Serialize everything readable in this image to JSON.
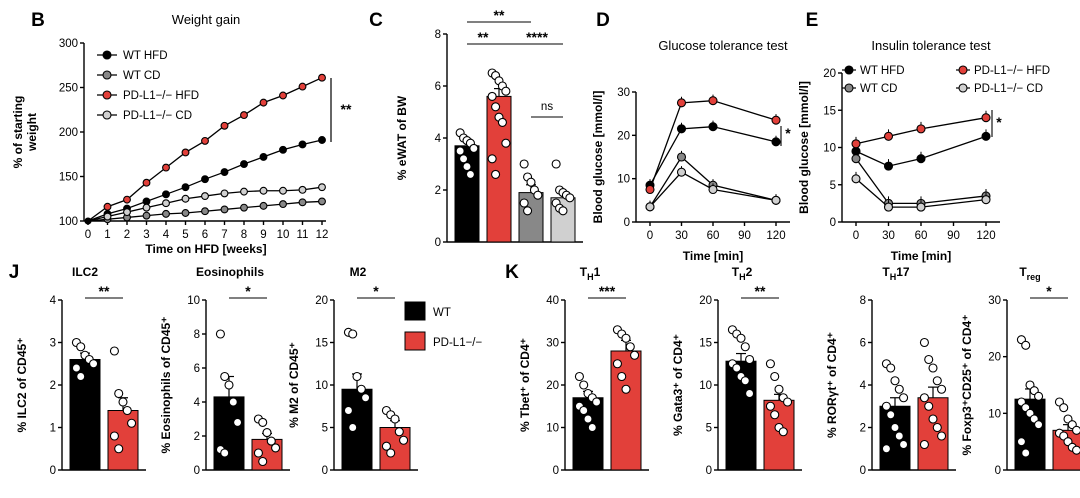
{
  "colors": {
    "wt": "#000000",
    "ko": "#e2403a",
    "wtcd": "#888888",
    "kocd": "#d0d0d0",
    "line": "#000000"
  },
  "legendJ": {
    "wt": "WT",
    "ko": "PD-L1−/−"
  },
  "chart_data": [
    {
      "id": "B",
      "panel": "B",
      "type": "line",
      "title": "Weight gain",
      "xlabel": "Time on HFD [weeks]",
      "ylabel1": "% of starting",
      "ylabel2": "weight",
      "ylim": [
        100,
        300
      ],
      "yticks": [
        100,
        150,
        200,
        250,
        300
      ],
      "xlim": [
        0,
        12
      ],
      "xticks": [
        0,
        1,
        2,
        3,
        4,
        5,
        6,
        7,
        8,
        9,
        10,
        11,
        12
      ],
      "x": [
        0,
        1,
        2,
        3,
        4,
        5,
        6,
        7,
        8,
        9,
        10,
        11,
        12
      ],
      "series": [
        {
          "name": "WT HFD",
          "color": "wt",
          "values": [
            100,
            108,
            114,
            122,
            130,
            138,
            147,
            155,
            164,
            172,
            180,
            186,
            191
          ]
        },
        {
          "name": "WT CD",
          "color": "wtcd",
          "values": [
            100,
            102,
            104,
            106,
            108,
            109,
            111,
            113,
            115,
            117,
            119,
            121,
            122
          ]
        },
        {
          "name": "PD-L1−/− HFD",
          "color": "ko",
          "values": [
            100,
            116,
            124,
            143,
            160,
            177,
            190,
            207,
            219,
            233,
            241,
            251,
            261
          ]
        },
        {
          "name": "PD-L1−/− CD",
          "color": "kocd",
          "values": [
            100,
            105,
            110,
            115,
            120,
            125,
            128,
            131,
            133,
            134,
            134,
            135,
            138
          ]
        }
      ],
      "sig": [
        {
          "text": "**"
        }
      ]
    },
    {
      "id": "C",
      "panel": "C",
      "type": "bar",
      "title": "",
      "ylabel": "% eWAT of BW",
      "ylim": [
        0,
        8
      ],
      "yticks": [
        0,
        2,
        4,
        6,
        8
      ],
      "categories": [
        "WT HFD",
        "PD-L1−/− HFD",
        "WT CD",
        "PD-L1−/− CD"
      ],
      "bar_colors": [
        "wt",
        "ko",
        "wtcd",
        "kocd"
      ],
      "values": [
        3.7,
        5.6,
        1.9,
        1.7
      ],
      "errors": [
        0.25,
        0.3,
        0.3,
        0.2
      ],
      "points": [
        [
          4.2,
          4.0,
          3.9,
          3.8,
          3.6,
          3.5,
          3.2,
          2.9,
          2.6
        ],
        [
          6.5,
          6.4,
          6.2,
          6.0,
          5.8,
          5.6,
          5.2,
          4.8,
          4.6,
          3.8,
          3.2,
          2.6
        ],
        [
          3.0,
          2.5,
          2.3,
          2.0,
          1.8,
          1.5,
          1.2
        ],
        [
          3.0,
          2.0,
          1.9,
          1.8,
          1.7,
          1.5,
          1.3,
          1.2
        ]
      ],
      "sig": [
        {
          "text": "**"
        },
        {
          "text": "**"
        },
        {
          "text": "****"
        },
        {
          "text": "ns"
        }
      ]
    },
    {
      "id": "D",
      "panel": "D",
      "type": "line",
      "title": "Glucose tolerance test",
      "xlabel": "Time [min]",
      "ylabel": "Blood glucose [mmol/l]",
      "ylim": [
        0,
        30
      ],
      "yticks": [
        0,
        10,
        20,
        30
      ],
      "xticks": [
        0,
        30,
        60,
        90,
        120
      ],
      "x": [
        0,
        30,
        60,
        120
      ],
      "series": [
        {
          "name": "WT HFD",
          "color": "wt",
          "values": [
            8.5,
            21.5,
            22,
            18.5
          ]
        },
        {
          "name": "PD-L1−/− HFD",
          "color": "ko",
          "values": [
            7.5,
            27.5,
            28,
            23.5
          ]
        },
        {
          "name": "WT CD",
          "color": "wtcd",
          "values": [
            3.5,
            15,
            8.5,
            5
          ]
        },
        {
          "name": "PD-L1−/− CD",
          "color": "kocd",
          "values": [
            3.5,
            11.5,
            7.5,
            5
          ]
        }
      ],
      "sig": [
        {
          "text": "*"
        }
      ]
    },
    {
      "id": "E",
      "panel": "E",
      "type": "line",
      "title": "Insulin tolerance test",
      "xlabel": "Time [min]",
      "ylabel": "Blood glucose [mmol/l]",
      "ylim": [
        0,
        20
      ],
      "yticks": [
        0,
        5,
        10,
        15,
        20
      ],
      "xticks": [
        0,
        30,
        60,
        90,
        120
      ],
      "x": [
        0,
        30,
        60,
        120
      ],
      "series": [
        {
          "name": "WT HFD",
          "color": "wt",
          "values": [
            9.5,
            7.5,
            8.5,
            11.5
          ]
        },
        {
          "name": "PD-L1−/− HFD",
          "color": "ko",
          "values": [
            10.5,
            11.5,
            12.5,
            14
          ]
        },
        {
          "name": "WT CD",
          "color": "wtcd",
          "values": [
            8.5,
            2.5,
            2.5,
            3.5
          ]
        },
        {
          "name": "PD-L1−/− CD",
          "color": "kocd",
          "values": [
            5.8,
            2,
            2,
            3
          ]
        }
      ],
      "sig": [
        {
          "text": "*"
        }
      ]
    },
    {
      "id": "J1",
      "panel": "J",
      "type": "bar",
      "title": "ILC2",
      "ylabel": "% ILC2 of CD45⁺",
      "ylim": [
        0,
        4
      ],
      "yticks": [
        0,
        1,
        2,
        3,
        4
      ],
      "categories": [
        "WT",
        "PD-L1−/−"
      ],
      "bar_colors": [
        "wt",
        "ko"
      ],
      "values": [
        2.6,
        1.4
      ],
      "errors": [
        0.15,
        0.3
      ],
      "points": [
        [
          3.0,
          2.9,
          2.7,
          2.6,
          2.5,
          2.4,
          2.2
        ],
        [
          2.8,
          1.8,
          1.6,
          1.4,
          1.1,
          0.8,
          0.5
        ]
      ],
      "sig": [
        {
          "text": "**"
        }
      ]
    },
    {
      "id": "J2",
      "panel": "",
      "type": "bar",
      "title": "Eosinophils",
      "ylabel": "% Eosinophils of CD45⁺",
      "ylim": [
        0,
        10
      ],
      "yticks": [
        0,
        2,
        4,
        6,
        8,
        10
      ],
      "categories": [
        "WT",
        "PD-L1−/−"
      ],
      "bar_colors": [
        "wt",
        "ko"
      ],
      "values": [
        4.3,
        1.8
      ],
      "errors": [
        1.2,
        0.35
      ],
      "points": [
        [
          8.0,
          5.5,
          5.0,
          4.0,
          2.8,
          1.2,
          1.0
        ],
        [
          3.0,
          2.8,
          2.2,
          1.7,
          1.3,
          1.0,
          0.5
        ]
      ],
      "sig": [
        {
          "text": "*"
        }
      ]
    },
    {
      "id": "J3",
      "panel": "",
      "type": "bar",
      "title": "M2",
      "ylabel": "% M2 of CD45⁺",
      "ylim": [
        0,
        20
      ],
      "yticks": [
        0,
        5,
        10,
        15,
        20
      ],
      "categories": [
        "WT",
        "PD-L1−/−"
      ],
      "bar_colors": [
        "wt",
        "ko"
      ],
      "values": [
        9.5,
        5.0
      ],
      "errors": [
        1.8,
        0.8
      ],
      "points": [
        [
          16.2,
          16.0,
          11,
          9.5,
          8.5,
          7.0,
          5.0
        ],
        [
          7.0,
          6.5,
          6.0,
          4.5,
          3.5,
          2.8,
          2.0
        ]
      ],
      "sig": [
        {
          "text": "*"
        }
      ]
    },
    {
      "id": "K1",
      "panel": "K",
      "type": "bar",
      "title": "T",
      "title_sub": "H",
      "title_tail": "1",
      "ylabel": "% Tbet⁺ of CD4⁺",
      "ylim": [
        0,
        40
      ],
      "yticks": [
        0,
        10,
        20,
        30,
        40
      ],
      "categories": [
        "WT",
        "PD-L1−/−"
      ],
      "bar_colors": [
        "wt",
        "ko"
      ],
      "values": [
        17,
        28
      ],
      "errors": [
        1.5,
        2.5
      ],
      "points": [
        [
          22,
          20,
          18,
          17,
          16,
          15,
          14,
          12,
          10
        ],
        [
          33,
          32,
          31,
          29,
          27,
          25,
          22,
          19
        ]
      ],
      "sig": [
        {
          "text": "***"
        }
      ]
    },
    {
      "id": "K2",
      "panel": "",
      "type": "bar",
      "title": "T",
      "title_sub": "H",
      "title_tail": "2",
      "ylabel": "% Gata3⁺ of CD4⁺",
      "ylim": [
        0,
        20
      ],
      "yticks": [
        0,
        5,
        10,
        15,
        20
      ],
      "categories": [
        "WT",
        "PD-L1−/−"
      ],
      "bar_colors": [
        "wt",
        "ko"
      ],
      "values": [
        12.8,
        8.2
      ],
      "errors": [
        0.9,
        0.7
      ],
      "points": [
        [
          16.5,
          16,
          15.5,
          14.5,
          13,
          12.5,
          12,
          11,
          10.5,
          9
        ],
        [
          12.5,
          11,
          9.5,
          8.5,
          8,
          7.5,
          6.5,
          5,
          4.5
        ]
      ],
      "sig": [
        {
          "text": "**"
        }
      ]
    },
    {
      "id": "K3",
      "panel": "",
      "type": "bar",
      "title": "T",
      "title_sub": "H",
      "title_tail": "17",
      "ylabel": "% RORγt⁺ of CD4⁺",
      "ylim": [
        0,
        8
      ],
      "yticks": [
        0,
        2,
        4,
        6,
        8
      ],
      "categories": [
        "WT",
        "PD-L1−/−"
      ],
      "bar_colors": [
        "wt",
        "ko"
      ],
      "values": [
        3.0,
        3.4
      ],
      "errors": [
        0.4,
        0.5
      ],
      "points": [
        [
          5.0,
          4.8,
          4.2,
          3.8,
          3.4,
          3.0,
          2.6,
          2.0,
          1.6,
          1.2,
          1.0
        ],
        [
          6.0,
          5.2,
          4.8,
          4.2,
          3.8,
          3.4,
          3.0,
          2.4,
          2.0,
          1.6,
          1.2
        ]
      ],
      "sig": []
    },
    {
      "id": "K4",
      "panel": "",
      "type": "bar",
      "title": "T",
      "title_sub": "reg",
      "title_tail": "",
      "ylabel": "% Foxp3⁺CD25⁺ of CD4⁺",
      "ylim": [
        0,
        30
      ],
      "yticks": [
        0,
        10,
        20,
        30
      ],
      "categories": [
        "WT",
        "PD-L1−/−"
      ],
      "bar_colors": [
        "wt",
        "ko"
      ],
      "values": [
        12.5,
        7.0
      ],
      "errors": [
        1.8,
        1.0
      ],
      "points": [
        [
          23,
          22,
          15,
          14,
          13,
          12,
          11,
          10,
          9,
          8,
          5,
          3
        ],
        [
          12,
          11,
          9,
          8,
          7,
          6.5,
          6,
          5,
          4,
          3.5
        ]
      ],
      "sig": [
        {
          "text": "*"
        }
      ]
    }
  ]
}
